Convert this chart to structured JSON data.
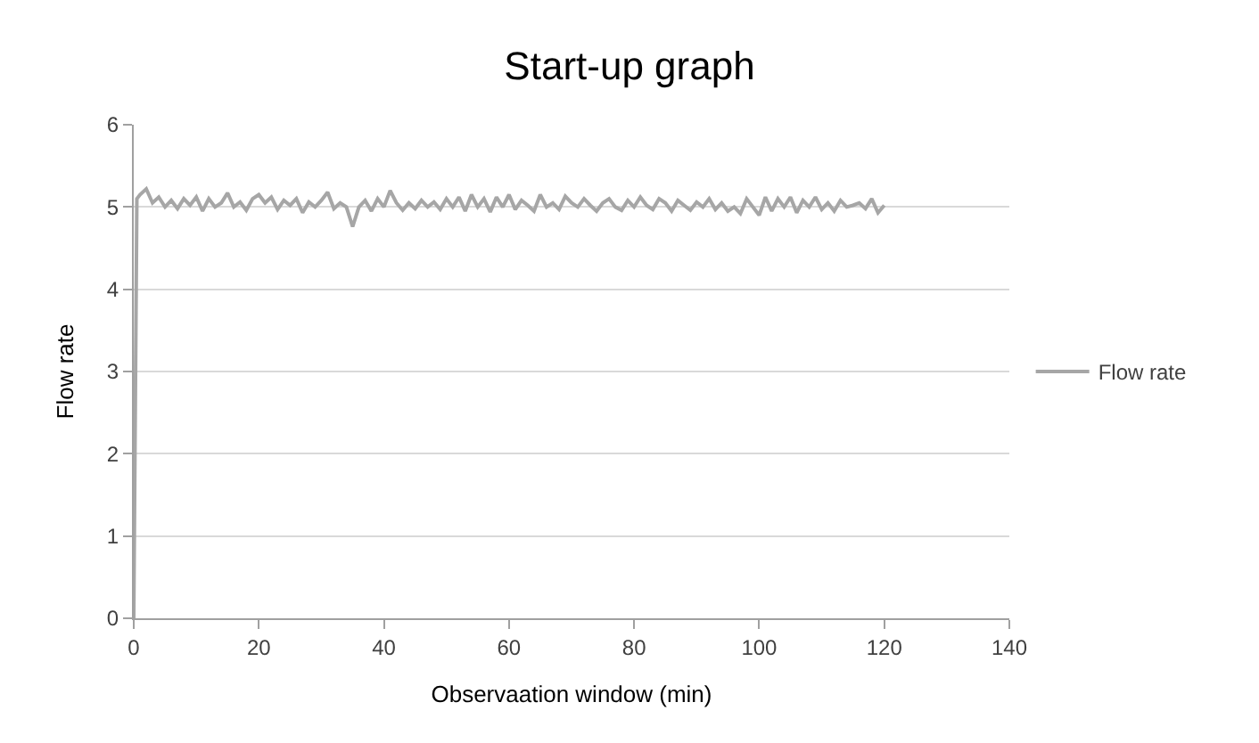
{
  "chart_data": {
    "type": "line",
    "title": "Start-up graph",
    "xlabel": "Observaation window (min)",
    "ylabel": "Flow rate",
    "xlim": [
      0,
      140
    ],
    "xticks": [
      0,
      20,
      40,
      60,
      80,
      100,
      120,
      140
    ],
    "ylim": [
      0,
      6
    ],
    "yticks": [
      0,
      1,
      2,
      3,
      4,
      5,
      6
    ],
    "grid": "y",
    "legend": "right",
    "marker": "none",
    "line_style": "solid",
    "series": [
      {
        "name": "Flow rate",
        "color": "#a6a6a6",
        "x": [
          0,
          0.5,
          1,
          2,
          3,
          4,
          5,
          6,
          7,
          8,
          9,
          10,
          11,
          12,
          13,
          14,
          15,
          16,
          17,
          18,
          19,
          20,
          21,
          22,
          23,
          24,
          25,
          26,
          27,
          28,
          29,
          30,
          31,
          32,
          33,
          34,
          35,
          36,
          37,
          38,
          39,
          40,
          41,
          42,
          43,
          44,
          45,
          46,
          47,
          48,
          49,
          50,
          51,
          52,
          53,
          54,
          55,
          56,
          57,
          58,
          59,
          60,
          61,
          62,
          63,
          64,
          65,
          66,
          67,
          68,
          69,
          70,
          71,
          72,
          73,
          74,
          75,
          76,
          77,
          78,
          79,
          80,
          81,
          82,
          83,
          84,
          85,
          86,
          87,
          88,
          89,
          90,
          91,
          92,
          93,
          94,
          95,
          96,
          97,
          98,
          99,
          100,
          101,
          102,
          103,
          104,
          105,
          106,
          107,
          108,
          109,
          110,
          111,
          112,
          113,
          114,
          115,
          116,
          117,
          118,
          119,
          120
        ],
        "values": [
          0,
          5.1,
          5.15,
          5.22,
          5.05,
          5.12,
          5.0,
          5.08,
          4.98,
          5.1,
          5.02,
          5.12,
          4.95,
          5.1,
          5.0,
          5.05,
          5.17,
          5.0,
          5.06,
          4.96,
          5.1,
          5.15,
          5.05,
          5.12,
          4.97,
          5.08,
          5.02,
          5.1,
          4.93,
          5.06,
          5.0,
          5.08,
          5.18,
          4.98,
          5.05,
          5.0,
          4.76,
          5.0,
          5.08,
          4.95,
          5.1,
          5.0,
          5.2,
          5.05,
          4.96,
          5.05,
          4.98,
          5.08,
          5.0,
          5.06,
          4.97,
          5.1,
          5.0,
          5.12,
          4.95,
          5.15,
          5.0,
          5.1,
          4.94,
          5.12,
          5.0,
          5.15,
          4.97,
          5.08,
          5.02,
          4.95,
          5.15,
          5.0,
          5.05,
          4.97,
          5.13,
          5.05,
          5.0,
          5.1,
          5.02,
          4.95,
          5.05,
          5.1,
          5.0,
          4.96,
          5.08,
          5.0,
          5.12,
          5.02,
          4.97,
          5.1,
          5.05,
          4.95,
          5.08,
          5.02,
          4.96,
          5.06,
          5.0,
          5.1,
          4.97,
          5.05,
          4.95,
          5.0,
          4.92,
          5.1,
          5.0,
          4.9,
          5.12,
          4.95,
          5.1,
          5.0,
          5.12,
          4.93,
          5.08,
          5.0,
          5.12,
          4.97,
          5.05,
          4.95,
          5.08,
          5.0,
          5.02,
          5.05,
          4.98,
          5.1,
          4.93,
          5.02
        ]
      }
    ]
  }
}
